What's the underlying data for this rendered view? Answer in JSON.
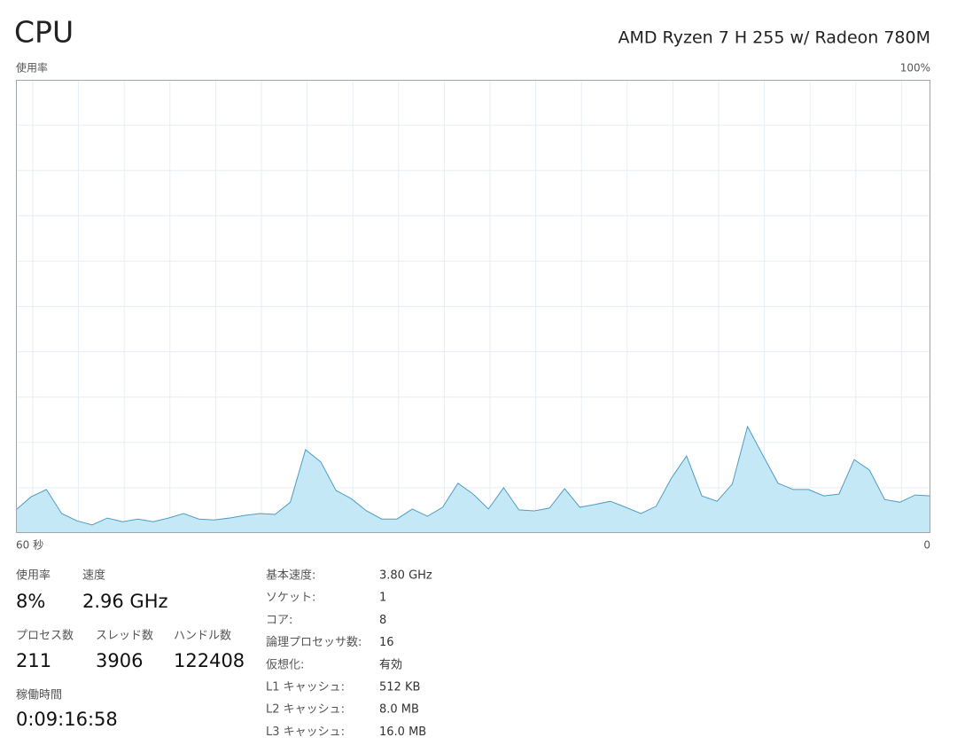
{
  "header": {
    "title": "CPU",
    "processor": "AMD Ryzen 7 H 255 w/ Radeon 780M"
  },
  "chart_data": {
    "type": "area",
    "ylabel": "使用率",
    "x": [
      60,
      59,
      58,
      57,
      56,
      55,
      54,
      53,
      52,
      51,
      50,
      49,
      48,
      47,
      46,
      45,
      44,
      43,
      42,
      41,
      40,
      39,
      38,
      37,
      36,
      35,
      34,
      33,
      32,
      31,
      30,
      29,
      28,
      27,
      26,
      25,
      24,
      23,
      22,
      21,
      20,
      19,
      18,
      17,
      16,
      15,
      14,
      13,
      12,
      11,
      10,
      9,
      8,
      7,
      6,
      5,
      4,
      3,
      2,
      1,
      0
    ],
    "series": [
      {
        "color": "#4f9cc6",
        "fill": "#c5e8f7",
        "values": [
          5.1,
          8.0,
          9.6,
          4.3,
          2.7,
          1.8,
          3.3,
          2.5,
          3.1,
          2.5,
          3.3,
          4.3,
          3.1,
          2.9,
          3.3,
          3.9,
          4.3,
          4.1,
          6.8,
          18.4,
          15.7,
          9.4,
          7.6,
          4.9,
          3.1,
          3.1,
          5.3,
          3.7,
          5.7,
          11.0,
          8.6,
          5.3,
          10.0,
          5.1,
          4.9,
          5.5,
          9.8,
          5.7,
          6.3,
          7.0,
          5.7,
          4.3,
          5.9,
          12.1,
          17.0,
          8.2,
          7.0,
          10.8,
          23.5,
          17.2,
          11.0,
          9.6,
          9.6,
          8.2,
          8.6,
          16.2,
          13.9,
          7.4,
          6.8,
          8.4,
          8.2
        ]
      }
    ],
    "xlim": [
      60,
      0
    ],
    "ylim": [
      0,
      100
    ],
    "xticks": [
      {
        "value": 60,
        "label": "60 秒"
      },
      0
    ],
    "yticks": [
      {
        "value": 100,
        "label": "100%"
      }
    ],
    "grid": true
  },
  "stats": [
    [
      {
        "label": "使用率",
        "value": "8%"
      },
      {
        "label": "速度",
        "value": "2.96 GHz"
      }
    ],
    [
      {
        "label": "プロセス数",
        "value": 211
      },
      {
        "label": "スレッド数",
        "value": 3906
      },
      {
        "label": "ハンドル数",
        "value": 122408
      }
    ],
    [
      {
        "label": "稼働時間",
        "value": "0:09:16:58"
      }
    ]
  ],
  "specs": [
    [
      "基本速度:",
      "3.80 GHz"
    ],
    [
      "ソケット:",
      1
    ],
    [
      "コア:",
      8
    ],
    [
      "論理プロセッサ数:",
      16
    ],
    [
      "仮想化:",
      "有効"
    ],
    [
      "L1 キャッシュ:",
      "512 KB"
    ],
    [
      "L2 キャッシュ:",
      "8.0 MB"
    ],
    [
      "L3 キャッシュ:",
      "16.0 MB"
    ]
  ]
}
